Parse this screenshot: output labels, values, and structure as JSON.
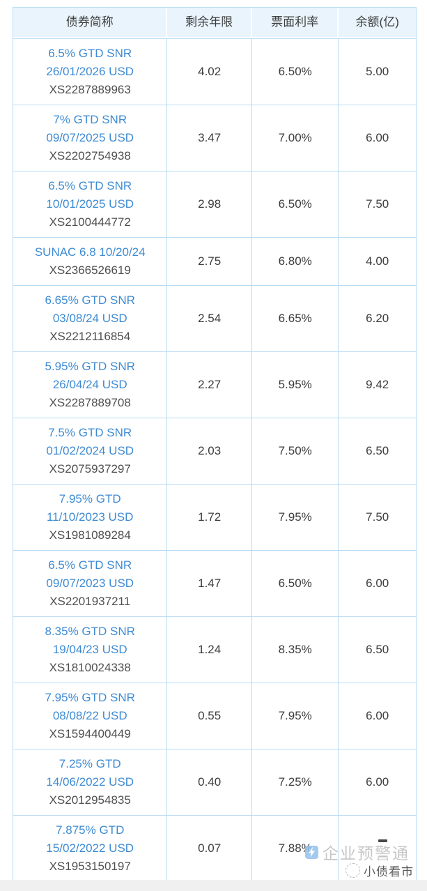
{
  "table": {
    "headers": [
      "债券简称",
      "剩余年限",
      "票面利率",
      "余额(亿)"
    ]
  },
  "bonds": [
    {
      "name_lines": [
        "6.5% GTD SNR",
        "26/01/2026 USD"
      ],
      "code": "XS2287889963",
      "remaining_years": "4.02",
      "coupon_rate": "6.50%",
      "balance": "5.00"
    },
    {
      "name_lines": [
        "7% GTD SNR",
        "09/07/2025 USD"
      ],
      "code": "XS2202754938",
      "remaining_years": "3.47",
      "coupon_rate": "7.00%",
      "balance": "6.00"
    },
    {
      "name_lines": [
        "6.5% GTD SNR",
        "10/01/2025 USD"
      ],
      "code": "XS2100444772",
      "remaining_years": "2.98",
      "coupon_rate": "6.50%",
      "balance": "7.50"
    },
    {
      "name_lines": [
        "SUNAC 6.8 10/20/24"
      ],
      "code": "XS2366526619",
      "remaining_years": "2.75",
      "coupon_rate": "6.80%",
      "balance": "4.00"
    },
    {
      "name_lines": [
        "6.65% GTD SNR",
        "03/08/24 USD"
      ],
      "code": "XS2212116854",
      "remaining_years": "2.54",
      "coupon_rate": "6.65%",
      "balance": "6.20"
    },
    {
      "name_lines": [
        "5.95% GTD SNR",
        "26/04/24 USD"
      ],
      "code": "XS2287889708",
      "remaining_years": "2.27",
      "coupon_rate": "5.95%",
      "balance": "9.42"
    },
    {
      "name_lines": [
        "7.5% GTD SNR",
        "01/02/2024 USD"
      ],
      "code": "XS2075937297",
      "remaining_years": "2.03",
      "coupon_rate": "7.50%",
      "balance": "6.50"
    },
    {
      "name_lines": [
        "7.95% GTD",
        "11/10/2023 USD"
      ],
      "code": "XS1981089284",
      "remaining_years": "1.72",
      "coupon_rate": "7.95%",
      "balance": "7.50"
    },
    {
      "name_lines": [
        "6.5% GTD SNR",
        "09/07/2023 USD"
      ],
      "code": "XS2201937211",
      "remaining_years": "1.47",
      "coupon_rate": "6.50%",
      "balance": "6.00"
    },
    {
      "name_lines": [
        "8.35% GTD SNR",
        "19/04/23 USD"
      ],
      "code": "XS1810024338",
      "remaining_years": "1.24",
      "coupon_rate": "8.35%",
      "balance": "6.50"
    },
    {
      "name_lines": [
        "7.95% GTD SNR",
        "08/08/22 USD"
      ],
      "code": "XS1594400449",
      "remaining_years": "0.55",
      "coupon_rate": "7.95%",
      "balance": "6.00"
    },
    {
      "name_lines": [
        "7.25% GTD",
        "14/06/2022 USD"
      ],
      "code": "XS2012954835",
      "remaining_years": "0.40",
      "coupon_rate": "7.25%",
      "balance": "6.00"
    },
    {
      "name_lines": [
        "7.875% GTD",
        "15/02/2022 USD"
      ],
      "code": "XS1953150197",
      "remaining_years": "0.07",
      "coupon_rate": "7.88%",
      "balance": ""
    }
  ],
  "watermarks": {
    "brand": "企业预警通",
    "brand_icon": "lightning-bolt-icon",
    "source": "小债看市",
    "source_icon": "round-stamp-icon"
  },
  "colors": {
    "header_bg": "#e9f4fc",
    "border": "#b9dcf4",
    "bond_link": "#3e8bd3",
    "code_text": "#4f4f4f",
    "value_text": "#3d3d3d",
    "watermark_text": "#c7c7c7",
    "watermark_icon": "#92c1ec",
    "source_text": "#4a4a4a",
    "bottom_strip": "#f0f0f0"
  }
}
